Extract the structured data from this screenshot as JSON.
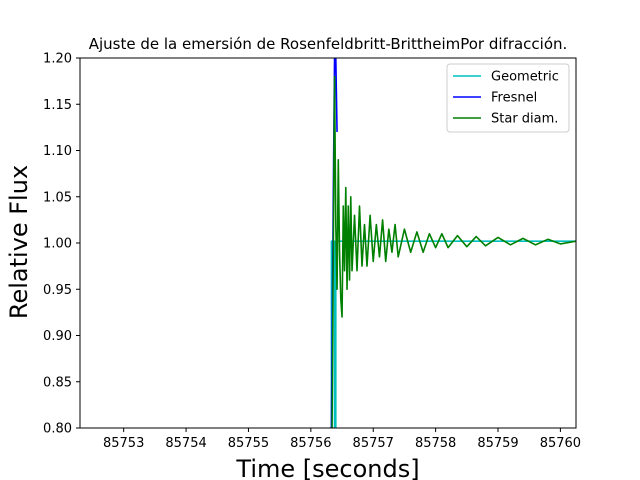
{
  "chart_data": {
    "type": "line",
    "title": "Ajuste de la emersión de Rosenfeldbritt-BrittheimPor difracción.",
    "xlabel": "Time [seconds]",
    "ylabel": "Relative Flux",
    "xlim": [
      85752.3,
      85760.25
    ],
    "ylim": [
      0.8,
      1.2
    ],
    "x_ticks": [
      85753,
      85754,
      85755,
      85756,
      85757,
      85758,
      85759,
      85760
    ],
    "y_ticks": [
      0.8,
      0.85,
      0.9,
      0.95,
      1.0,
      1.05,
      1.1,
      1.15,
      1.2
    ],
    "x_tick_labels": [
      "85753",
      "85754",
      "85755",
      "85756",
      "85757",
      "85758",
      "85759",
      "85760"
    ],
    "y_tick_labels": [
      "0.80",
      "0.85",
      "0.90",
      "0.95",
      "1.00",
      "1.05",
      "1.10",
      "1.15",
      "1.20"
    ],
    "grid": false,
    "legend_position": "top-right",
    "series": [
      {
        "name": "Geometric",
        "color": "#00bfbf",
        "x": [
          85756.3,
          85756.33,
          85756.33,
          85756.38,
          85756.38,
          85756.4,
          85756.4,
          85760.25
        ],
        "y": [
          0.8,
          0.8,
          1.002,
          1.002,
          0.8,
          0.8,
          1.002,
          1.002
        ]
      },
      {
        "name": "Fresnel",
        "color": "#0000ff",
        "x": [
          85756.33,
          85756.36,
          85756.38,
          85756.4,
          85756.42
        ],
        "y": [
          0.8,
          1.05,
          1.2,
          1.2,
          1.12
        ]
      },
      {
        "name": "Star diam.",
        "color": "#008000",
        "x": [
          85756.34,
          85756.36,
          85756.38,
          85756.4,
          85756.42,
          85756.44,
          85756.46,
          85756.48,
          85756.5,
          85756.52,
          85756.54,
          85756.56,
          85756.58,
          85756.6,
          85756.62,
          85756.64,
          85756.66,
          85756.7,
          85756.74,
          85756.78,
          85756.82,
          85756.86,
          85756.9,
          85756.95,
          85757.0,
          85757.05,
          85757.1,
          85757.15,
          85757.2,
          85757.25,
          85757.3,
          85757.35,
          85757.4,
          85757.5,
          85757.6,
          85757.7,
          85757.8,
          85757.9,
          85758.0,
          85758.1,
          85758.2,
          85758.35,
          85758.5,
          85758.65,
          85758.8,
          85759.0,
          85759.2,
          85759.4,
          85759.6,
          85759.8,
          85760.0,
          85760.25
        ],
        "y": [
          0.8,
          0.99,
          1.18,
          1.02,
          0.95,
          1.09,
          0.99,
          0.94,
          0.92,
          1.04,
          0.97,
          1.06,
          0.95,
          1.04,
          0.96,
          1.05,
          0.97,
          1.03,
          0.97,
          1.04,
          0.975,
          1.02,
          0.975,
          1.03,
          0.98,
          1.02,
          0.985,
          1.025,
          0.98,
          1.015,
          0.99,
          1.02,
          0.985,
          1.015,
          0.99,
          1.012,
          0.99,
          1.01,
          0.995,
          1.01,
          0.995,
          1.008,
          0.996,
          1.007,
          0.997,
          1.006,
          0.998,
          1.005,
          0.998,
          1.004,
          0.999,
          1.002
        ]
      }
    ]
  }
}
